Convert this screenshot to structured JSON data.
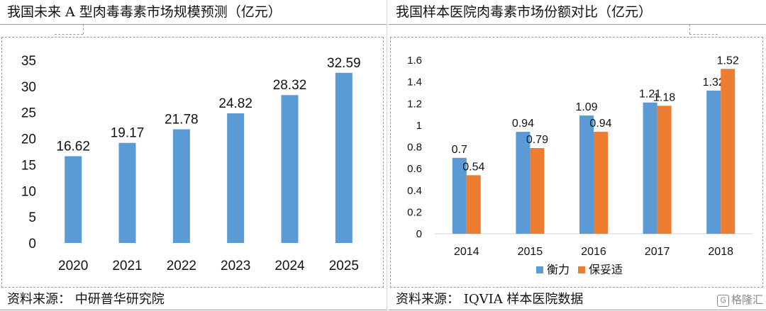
{
  "left": {
    "title": "我国未来 A 型肉毒毒素市场规模预测（亿元）",
    "source": "资料来源： 中研普华研究院"
  },
  "right": {
    "title": "我国样本医院肉毒素市场份额对比（亿元）",
    "source": "资料来源： IQVIA 样本医院数据"
  },
  "watermark": "格隆汇",
  "chart_data": [
    {
      "type": "bar",
      "title": "我国未来 A 型肉毒毒素市场规模预测（亿元）",
      "categories": [
        "2020",
        "2021",
        "2022",
        "2023",
        "2024",
        "2025"
      ],
      "values": [
        16.62,
        19.17,
        21.78,
        24.82,
        28.32,
        32.59
      ],
      "ylim": [
        0,
        35
      ],
      "yticks": [
        0,
        5,
        10,
        15,
        20,
        25,
        30,
        35
      ],
      "grid": false,
      "colors": [
        "#5b9bd5"
      ]
    },
    {
      "type": "bar",
      "title": "我国样本医院肉毒素市场份额对比（亿元）",
      "categories": [
        "2014",
        "2015",
        "2016",
        "2017",
        "2018"
      ],
      "series": [
        {
          "name": "衡力",
          "values": [
            0.7,
            0.94,
            1.09,
            1.21,
            1.32
          ],
          "labels": [
            "0.7",
            "0.94",
            "1.09",
            "1.21",
            "1.32"
          ]
        },
        {
          "name": "保妥适",
          "values": [
            0.54,
            0.79,
            0.94,
            1.18,
            1.52
          ],
          "labels": [
            "0.54",
            "0.79",
            "0.94",
            "1.18",
            "1.52"
          ]
        }
      ],
      "ylim": [
        0,
        1.6
      ],
      "yticks": [
        "0",
        "0.2",
        "0.4",
        "0.6",
        "0.8",
        "1",
        "1.2",
        "1.4",
        "1.6"
      ],
      "legend": "bottom",
      "grid": false,
      "colors": [
        "#5b9bd5",
        "#ed7d31"
      ]
    }
  ]
}
